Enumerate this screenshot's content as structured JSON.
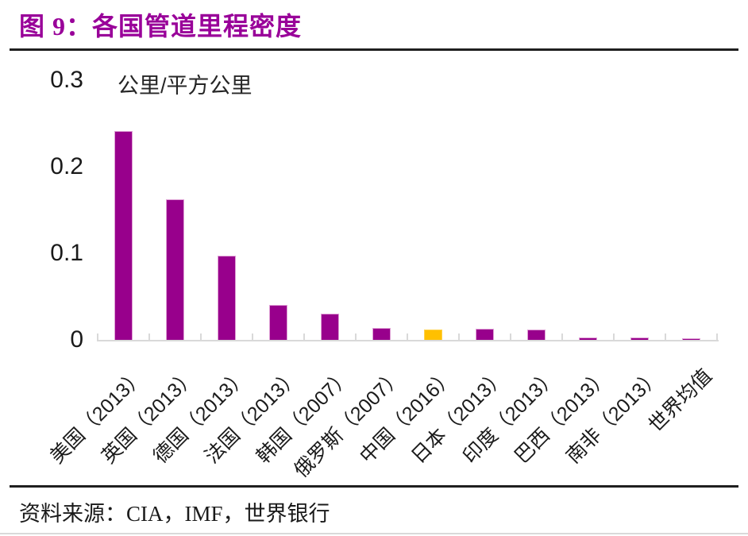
{
  "figure": {
    "title": "图 9：各国管道里程密度",
    "source_label": "资料来源：CIA，IMF，世界银行"
  },
  "chart_data": {
    "type": "bar",
    "title": "图 9：各国管道里程密度",
    "unit_label": "公里/平方公里",
    "categories": [
      "美国（2013）",
      "英国（2013）",
      "德国（2013）",
      "法国（2013）",
      "韩国（2007）",
      "俄罗斯（2007）",
      "中国（2016）",
      "日本（2013）",
      "印度（2013）",
      "巴西（2013）",
      "南非（2013）",
      "世界均值"
    ],
    "values": [
      0.242,
      0.163,
      0.098,
      0.041,
      0.031,
      0.015,
      0.0125,
      0.014,
      0.013,
      0.004,
      0.004,
      0.001
    ],
    "highlight_index": 6,
    "ylabel": "公里/平方公里",
    "xlabel": "",
    "ylim": [
      0,
      0.3
    ],
    "yticks": [
      "0",
      "0.1",
      "0.2",
      "0.3"
    ],
    "grid": false,
    "legend": "none",
    "bar_color": "#98008C",
    "bar_edge_color": "#DFA0D5",
    "highlight_color": "#FFC000",
    "highlight_edge_color": "#FFD24D",
    "axis_color": "#D9D9D9",
    "title_color": "#990099"
  }
}
